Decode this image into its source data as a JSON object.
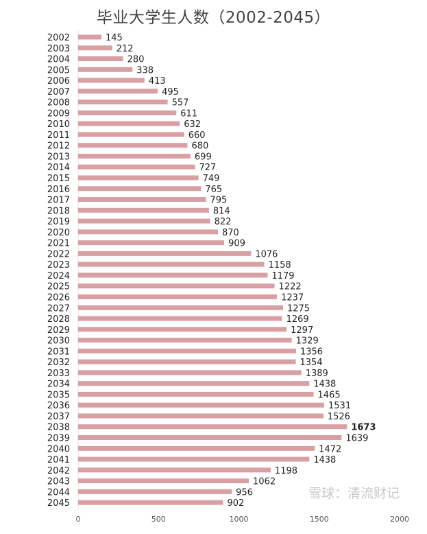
{
  "chart_data": {
    "type": "bar",
    "orientation": "horizontal",
    "title": "毕业大学生人数（2002-2045）",
    "xlabel": "",
    "ylabel": "",
    "xlim": [
      0,
      2000
    ],
    "x_ticks": [
      "0",
      "500",
      "1000",
      "1500",
      "2000"
    ],
    "grid": false,
    "bar_color": "#d9a0a4",
    "highlight": {
      "category": "2038",
      "label_color": "#8b1a1a"
    },
    "categories": [
      "2002",
      "2003",
      "2004",
      "2005",
      "2006",
      "2007",
      "2008",
      "2009",
      "2010",
      "2011",
      "2012",
      "2013",
      "2014",
      "2015",
      "2016",
      "2017",
      "2018",
      "2019",
      "2020",
      "2021",
      "2022",
      "2023",
      "2024",
      "2025",
      "2026",
      "2027",
      "2028",
      "2029",
      "2030",
      "2031",
      "2032",
      "2033",
      "2034",
      "2035",
      "2036",
      "2037",
      "2038",
      "2039",
      "2040",
      "2041",
      "2042",
      "2043",
      "2044",
      "2045"
    ],
    "values": [
      145,
      212,
      280,
      338,
      413,
      495,
      557,
      611,
      632,
      660,
      680,
      699,
      727,
      749,
      765,
      795,
      814,
      822,
      870,
      909,
      1076,
      1158,
      1179,
      1222,
      1237,
      1275,
      1269,
      1297,
      1329,
      1356,
      1354,
      1389,
      1438,
      1465,
      1531,
      1526,
      1673,
      1639,
      1472,
      1438,
      1198,
      1062,
      956,
      902
    ]
  },
  "watermark": "雪球：清流财记"
}
